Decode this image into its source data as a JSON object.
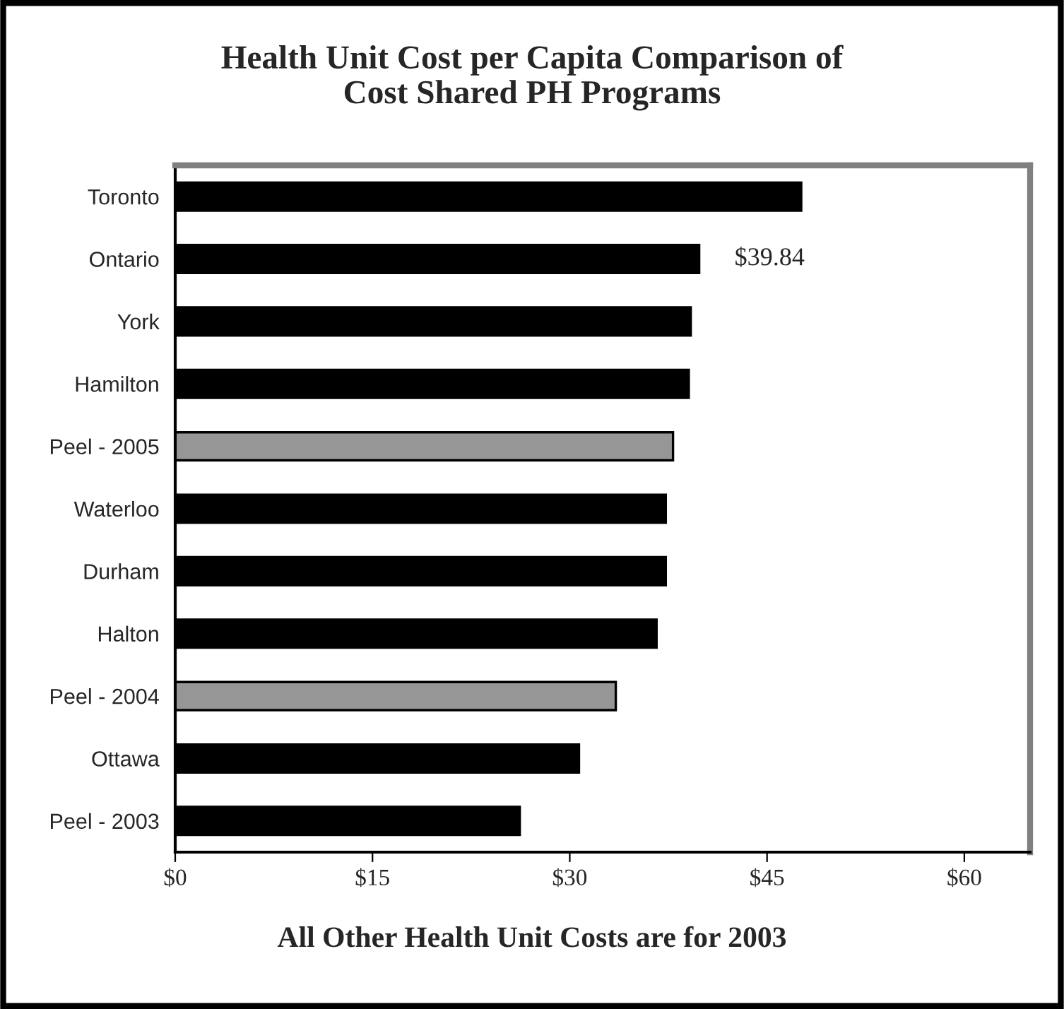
{
  "chart_data": {
    "type": "bar",
    "orientation": "horizontal",
    "title": "Health Unit Cost per Capita Comparison of\nCost Shared PH Programs",
    "categories": [
      "Toronto",
      "Ontario",
      "York",
      "Hamilton",
      "Peel - 2005",
      "Waterloo",
      "Durham",
      "Halton",
      "Peel - 2004",
      "Ottawa",
      "Peel - 2003"
    ],
    "values": [
      47.6,
      39.84,
      39.2,
      39.05,
      37.85,
      37.3,
      37.3,
      36.6,
      33.5,
      30.7,
      26.2
    ],
    "colors": [
      "#000000",
      "#000000",
      "#000000",
      "#000000",
      "#969696",
      "#000000",
      "#000000",
      "#000000",
      "#969696",
      "#000000",
      "#000000"
    ],
    "value_labels": [
      null,
      "$39.84",
      null,
      null,
      null,
      null,
      null,
      null,
      null,
      null,
      null
    ],
    "xlim": [
      0,
      65
    ],
    "xticks": [
      {
        "value": 0,
        "label": "$0"
      },
      {
        "value": 15,
        "label": "$15"
      },
      {
        "value": 30,
        "label": "$30"
      },
      {
        "value": 45,
        "label": "$45"
      },
      {
        "value": 60,
        "label": "$60"
      }
    ],
    "grid": false,
    "annotations": [
      "All Other Health Unit Costs are for 2003"
    ]
  }
}
